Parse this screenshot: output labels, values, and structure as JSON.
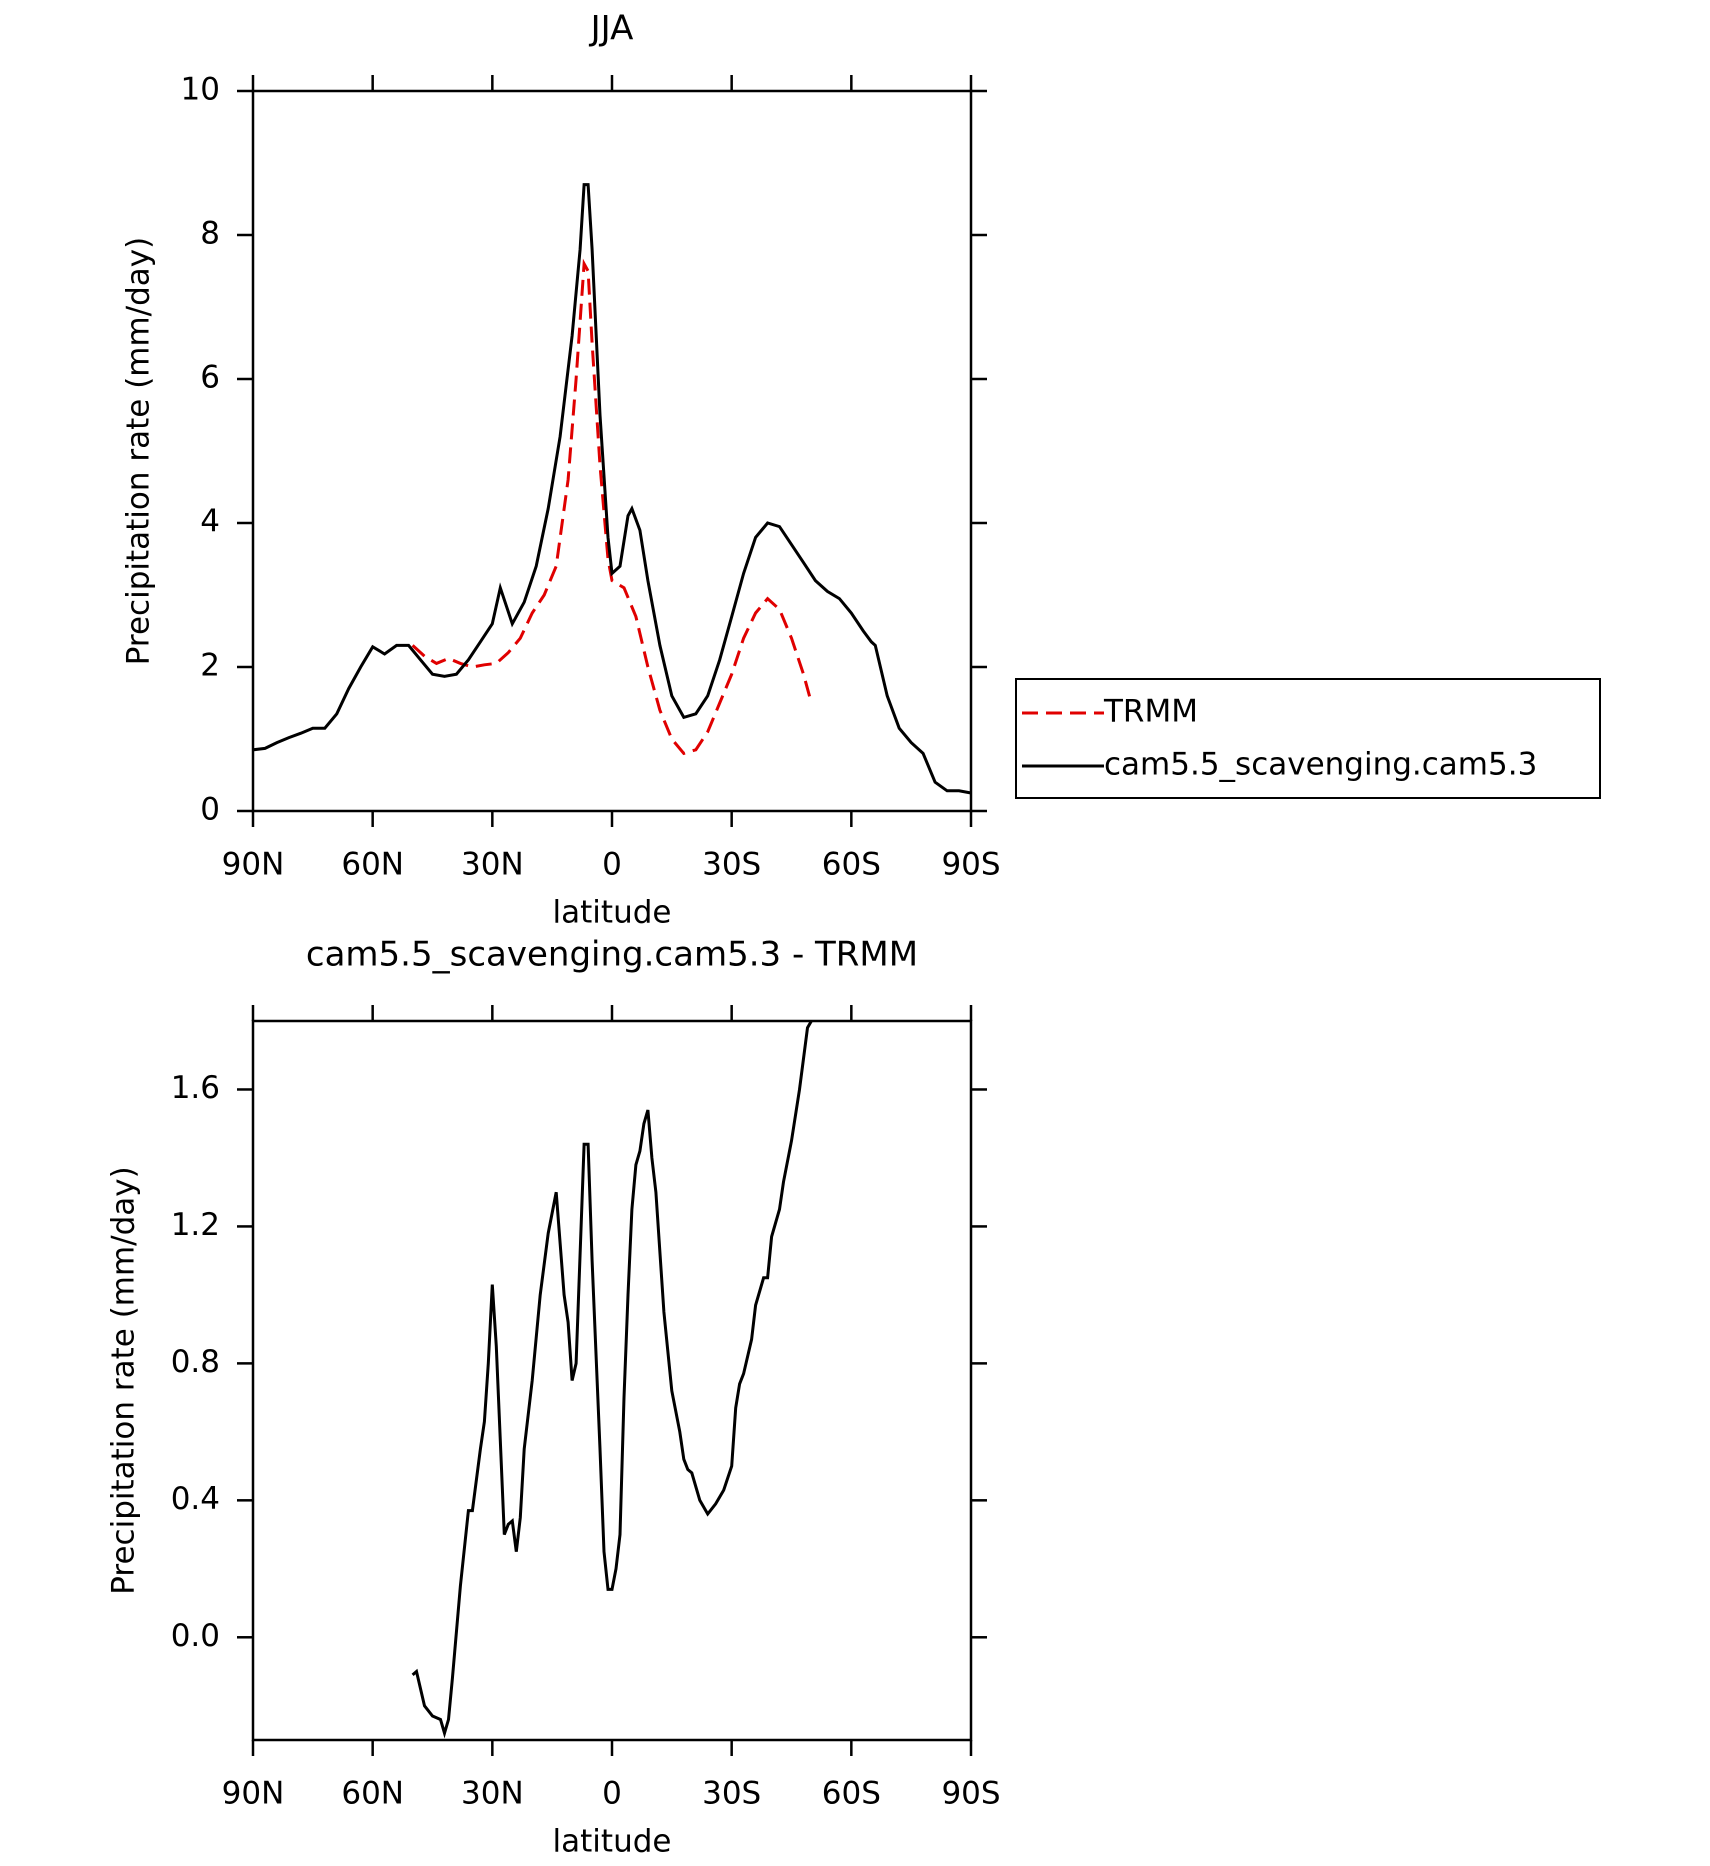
{
  "chart_data": [
    {
      "type": "line",
      "title": "JJA",
      "xlabel": "latitude",
      "ylabel": "Precipitation rate (mm/day)",
      "xlim": [
        90,
        -90
      ],
      "xticks": [
        {
          "value": 90,
          "label": "90N"
        },
        {
          "value": 60,
          "label": "60N"
        },
        {
          "value": 30,
          "label": "30N"
        },
        0,
        {
          "value": -30,
          "label": "30S"
        },
        {
          "value": -60,
          "label": "60S"
        },
        {
          "value": -90,
          "label": "90S"
        }
      ],
      "ylim": [
        0,
        10
      ],
      "yticks": [
        0,
        2,
        4,
        6,
        8,
        10
      ],
      "legend": "outside right",
      "series": [
        {
          "name": "TRMM",
          "color": "#e00000",
          "dash": true,
          "x": [
            50,
            47,
            44,
            41,
            38,
            35,
            32,
            29,
            26,
            23,
            20,
            17,
            14,
            11,
            9,
            7,
            6,
            5,
            3,
            1,
            0,
            -3,
            -6,
            -9,
            -12,
            -15,
            -18,
            -21,
            -24,
            -27,
            -30,
            -33,
            -36,
            -39,
            -42,
            -45,
            -48,
            -50
          ],
          "values": [
            2.3,
            2.15,
            2.05,
            2.12,
            2.05,
            2.0,
            2.03,
            2.05,
            2.2,
            2.4,
            2.75,
            3.0,
            3.4,
            4.6,
            6.0,
            7.6,
            7.5,
            6.5,
            4.8,
            3.5,
            3.2,
            3.1,
            2.7,
            2.0,
            1.4,
            1.0,
            0.8,
            0.85,
            1.1,
            1.5,
            1.9,
            2.4,
            2.75,
            2.95,
            2.8,
            2.4,
            1.9,
            1.5
          ]
        },
        {
          "name": "cam5.5_scavenging.cam5.3",
          "color": "#000000",
          "dash": false,
          "x": [
            90,
            87,
            84,
            81,
            78,
            75,
            72,
            69,
            66,
            63,
            60,
            57,
            54,
            51,
            48,
            45,
            42,
            39,
            36,
            33,
            30,
            28,
            25,
            22,
            19,
            16,
            13,
            10,
            8,
            7,
            6,
            5,
            3,
            1,
            0,
            -2,
            -4,
            -5,
            -7,
            -9,
            -12,
            -15,
            -18,
            -21,
            -24,
            -27,
            -30,
            -33,
            -36,
            -39,
            -42,
            -45,
            -48,
            -51,
            -54,
            -57,
            -60,
            -63,
            -65,
            -66,
            -69,
            -72,
            -75,
            -78,
            -81,
            -84,
            -87,
            -90
          ],
          "values": [
            0.85,
            0.87,
            0.95,
            1.02,
            1.08,
            1.15,
            1.15,
            1.35,
            1.7,
            2.0,
            2.28,
            2.18,
            2.3,
            2.3,
            2.1,
            1.9,
            1.87,
            1.9,
            2.1,
            2.35,
            2.6,
            3.1,
            2.6,
            2.9,
            3.4,
            4.2,
            5.2,
            6.6,
            7.8,
            8.7,
            8.7,
            7.8,
            5.5,
            3.8,
            3.3,
            3.4,
            4.1,
            4.2,
            3.9,
            3.2,
            2.3,
            1.6,
            1.3,
            1.35,
            1.6,
            2.1,
            2.7,
            3.3,
            3.8,
            4.0,
            3.95,
            3.7,
            3.45,
            3.2,
            3.05,
            2.95,
            2.75,
            2.5,
            2.35,
            2.3,
            1.6,
            1.15,
            0.95,
            0.8,
            0.4,
            0.28,
            0.28,
            0.25
          ]
        }
      ]
    },
    {
      "type": "line",
      "title": "cam5.5_scavenging.cam5.3 - TRMM",
      "xlabel": "latitude",
      "ylabel": "Precipitation rate (mm/day)",
      "xlim": [
        90,
        -90
      ],
      "xticks": [
        {
          "value": 90,
          "label": "90N"
        },
        {
          "value": 60,
          "label": "60N"
        },
        {
          "value": 30,
          "label": "30N"
        },
        0,
        {
          "value": -30,
          "label": "30S"
        },
        {
          "value": -60,
          "label": "60S"
        },
        {
          "value": -90,
          "label": "90S"
        }
      ],
      "ylim": [
        -0.3,
        1.8
      ],
      "yticks": [
        {
          "value": 0,
          "label": "0.0"
        },
        0.4,
        0.8,
        1.2,
        1.6
      ],
      "series": [
        {
          "color": "#000000",
          "dash": false,
          "x": [
            50,
            49,
            47,
            45,
            43,
            42,
            41,
            40,
            38,
            36,
            35,
            33,
            32,
            31,
            30,
            29,
            27,
            26,
            25,
            24,
            23,
            22,
            20,
            18,
            16,
            14,
            12,
            11,
            10,
            9,
            7,
            6,
            5,
            3,
            2,
            1,
            0,
            -1,
            -2,
            -3,
            -4,
            -5,
            -6,
            -7,
            -8,
            -9,
            -10,
            -11,
            -13,
            -15,
            -17,
            -18,
            -19,
            -20,
            -22,
            -24,
            -26,
            -28,
            -30,
            -31,
            -32,
            -33,
            -35,
            -36,
            -38,
            -39,
            -40,
            -42,
            -43,
            -45,
            -47,
            -49,
            -50
          ],
          "values": [
            -0.11,
            -0.1,
            -0.2,
            -0.23,
            -0.24,
            -0.28,
            -0.24,
            -0.12,
            0.15,
            0.37,
            0.37,
            0.55,
            0.63,
            0.8,
            1.03,
            0.85,
            0.3,
            0.33,
            0.34,
            0.25,
            0.35,
            0.55,
            0.75,
            1.0,
            1.18,
            1.3,
            1.0,
            0.92,
            0.75,
            0.8,
            1.44,
            1.44,
            1.1,
            0.55,
            0.25,
            0.14,
            0.14,
            0.2,
            0.3,
            0.7,
            1.0,
            1.25,
            1.38,
            1.42,
            1.5,
            1.54,
            1.4,
            1.3,
            0.95,
            0.72,
            0.6,
            0.52,
            0.49,
            0.48,
            0.4,
            0.36,
            0.39,
            0.43,
            0.5,
            0.67,
            0.74,
            0.77,
            0.87,
            0.97,
            1.05,
            1.05,
            1.17,
            1.25,
            1.33,
            1.45,
            1.6,
            1.78,
            1.8
          ]
        }
      ]
    }
  ]
}
